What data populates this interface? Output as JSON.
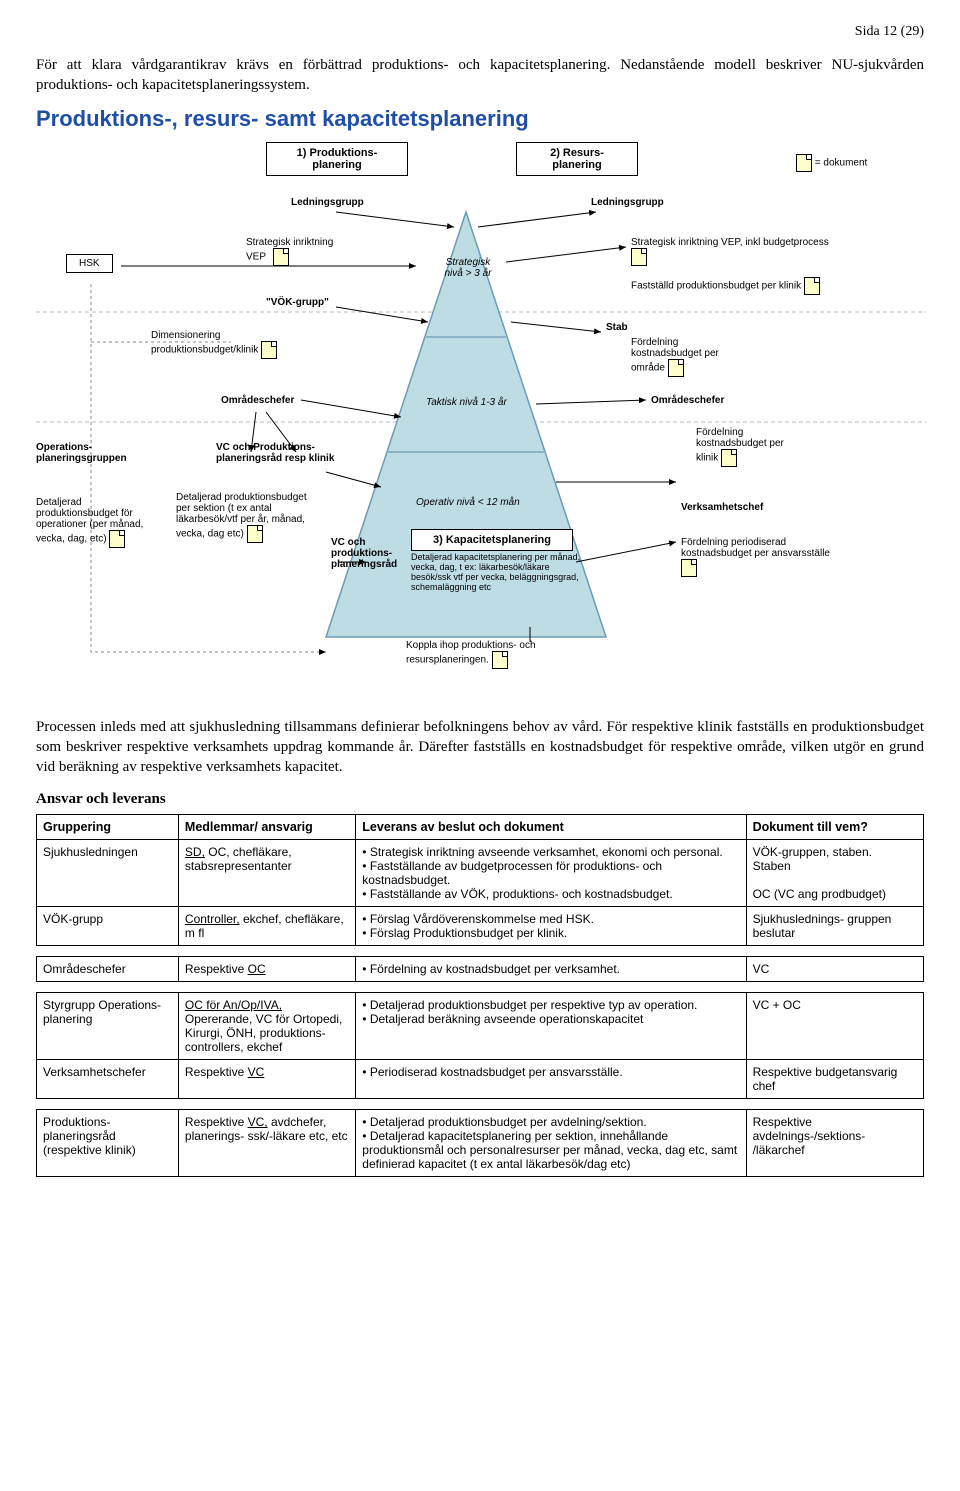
{
  "page_number": "Sida 12 (29)",
  "intro": "För att klara vårdgarantikrav krävs en förbättrad produktions- och kapacitetsplanering. Nedanstående modell beskriver NU-sjukvården produktions- och kapacitetsplaneringssystem.",
  "diagram": {
    "title": "Produktions-, resurs- samt kapacitetsplanering",
    "title_color": "#1f4fa5",
    "box1": "1) Produktions- planering",
    "box2": "2) Resurs- planering",
    "box3": "3) Kapacitetsplanering",
    "doc_legend": "= dokument",
    "ledningsgrupp": "Ledningsgrupp",
    "strategisk_vep": "Strategisk inriktning VEP",
    "vok_grupp": "\"VÖK-grupp\"",
    "hsk": "HSK",
    "dimensionering": "Dimensionering produktionsbudget/klinik",
    "omradeschefer": "Områdeschefer",
    "operations_grupp": "Operations- planeringsgruppen",
    "detaljerad_op": "Detaljerad produktionsbudget för operationer (per månad, vecka, dag, etc)",
    "vc_prod_rad": "VC och Produktions- planeringsråd resp klinik",
    "detaljerad_sektion": "Detaljerad produktionsbudget per sektion (t ex antal läkarbesök/vtf per år, månad, vecka, dag etc)",
    "vc_prod_rad2": "VC och produktions- planeringsråd",
    "strategisk_niva": "Strategisk nivå > 3 år",
    "taktisk_niva": "Taktisk nivå 1-3 år",
    "operativ_niva": "Operativ nivå < 12 mån",
    "strategisk_inkl": "Strategisk inriktning VEP, inkl budgetprocess",
    "faststalld": "Fastställd produktionsbudget per klinik",
    "stab": "Stab",
    "fordelning_omrade": "Fördelning kostnadsbudget per område",
    "fordelning_klinik": "Fördelning kostnadsbudget per klinik",
    "verksamhetschef": "Verksamhetschef",
    "fordelning_period": "Fördelning periodiserad kostnadsbudget per ansvarsställe",
    "kap_detail": "Detaljerad kapacitetsplanering per månad, vecka, dag, t ex: läkarbesök/läkare besök/ssk vtf per vecka, beläggningsgrad, schemaläggning etc",
    "koppla": "Koppla ihop produktions- och resursplaneringen.",
    "triangle_fill": "#bedce4",
    "triangle_stroke": "#6b9bb5",
    "bg": "#ffffff"
  },
  "process_text": "Processen inleds med att sjukhusledning tillsammans definierar befolkningens behov av vård. För respektive klinik fastställs en produktionsbudget som beskriver respektive verksamhets uppdrag kommande år. Därefter fastställs en kostnadsbudget för respektive område, vilken utgör en grund vid beräkning av respektive verksamhets kapacitet.",
  "ansvar_heading": "Ansvar och leverans",
  "table": {
    "col_widths": [
      "16%",
      "20%",
      "44%",
      "20%"
    ],
    "headers": [
      "Gruppering",
      "Medlemmar/ ansvarig",
      "Leverans av beslut och dokument",
      "Dokument till vem?"
    ],
    "rows": [
      {
        "grupp": "Sjukhusledningen",
        "medlemmar_html": "<span class='underline'>SD,</span> OC, chefläkare, stabsrepresentanter",
        "leverans": [
          "Strategisk inriktning avseende verksamhet, ekonomi och personal.",
          "Fastställande av budgetprocessen för produktions- och kostnadsbudget.",
          "Fastställande av VÖK, produktions- och kostnadsbudget."
        ],
        "dok": "VÖK-gruppen, staben.\nStaben\n\nOC (VC ang prodbudget)"
      },
      {
        "grupp": "VÖK-grupp",
        "medlemmar_html": "<span class='underline'>Controller,</span> ekchef, chefläkare, m fl",
        "leverans": [
          "Förslag Vårdöverenskommelse med HSK.",
          "Förslag Produktionsbudget per klinik."
        ],
        "dok": "Sjukhuslednings- gruppen beslutar"
      }
    ],
    "rows2": [
      {
        "grupp": "Styrgrupp Operations- planering",
        "medlemmar_html": "<span class='underline'>OC för An/Op/IVA,</span> Opererande, VC för Ortopedi, Kirurgi, ÖNH, produktions- controllers, ekchef",
        "leverans": [
          "Detaljerad produktionsbudget per respektive typ av operation.",
          "Detaljerad beräkning avseende operationskapacitet"
        ],
        "dok": "VC + OC"
      },
      {
        "grupp": "Verksamhetschefer",
        "medlemmar_html": "Respektive <span class='underline'>VC</span>",
        "leverans": [
          "Periodiserad kostnadsbudget per ansvarsställe."
        ],
        "dok": "Respektive budgetansvarig chef"
      }
    ],
    "row_omr": {
      "grupp": "Områdeschefer",
      "medlemmar_html": "Respektive <span class='underline'>OC</span>",
      "leverans": [
        "Fördelning av kostnadsbudget per verksamhet."
      ],
      "dok": "VC"
    },
    "row_last": {
      "grupp": "Produktions- planeringsråd (respektive klinik)",
      "medlemmar_html": "Respektive <span class='underline'>VC,</span> avdchefer, planerings- ssk/-läkare etc, etc",
      "leverans": [
        "Detaljerad produktionsbudget per avdelning/sektion.",
        "Detaljerad kapacitetsplanering per sektion, innehållande produktionsmål och personalresurser per månad, vecka, dag etc, samt definierad kapacitet (t ex antal läkarbesök/dag etc)"
      ],
      "dok": "Respektive avdelnings-/sektions- /läkarchef"
    }
  }
}
